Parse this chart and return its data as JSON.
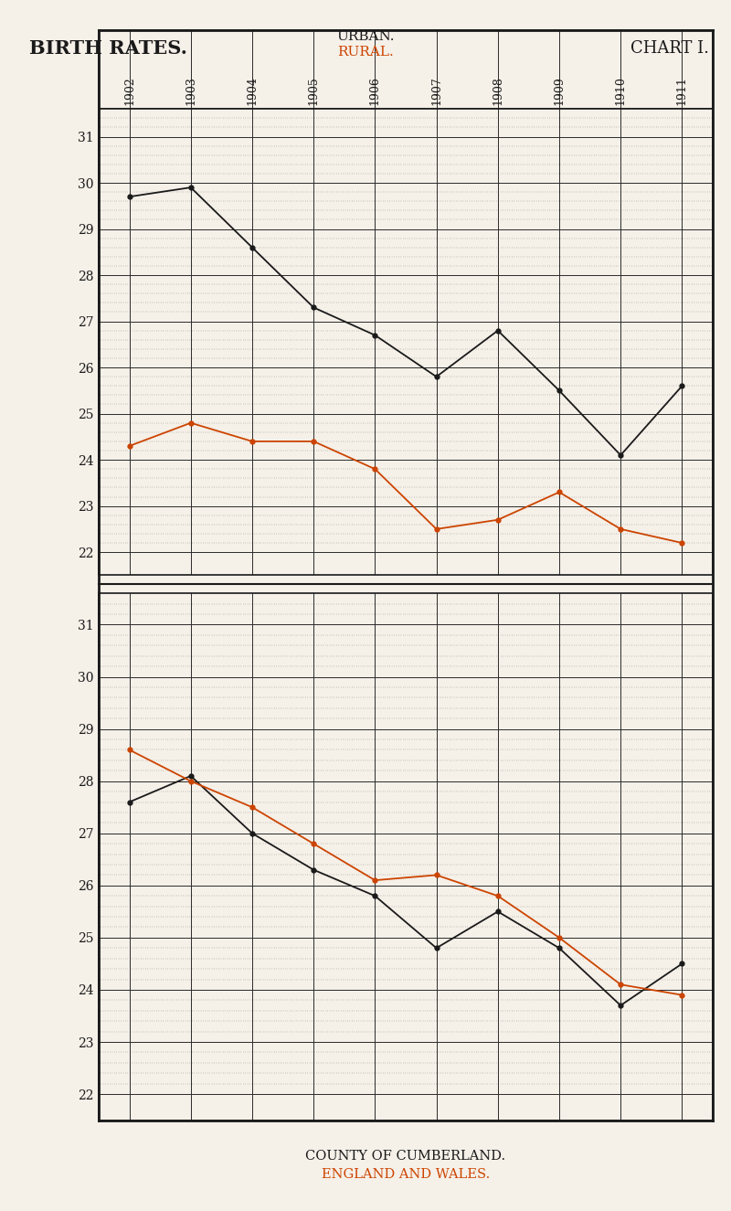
{
  "years": [
    1902,
    1903,
    1904,
    1905,
    1906,
    1907,
    1908,
    1909,
    1910,
    1911
  ],
  "chart1_urban": [
    29.7,
    29.9,
    28.6,
    27.3,
    26.7,
    25.8,
    26.8,
    25.5,
    24.1,
    25.6
  ],
  "chart1_rural": [
    24.3,
    24.8,
    24.4,
    24.4,
    23.8,
    22.5,
    22.7,
    23.3,
    22.5,
    22.2
  ],
  "chart2_urban": [
    27.6,
    28.1,
    27.0,
    26.3,
    25.8,
    24.8,
    25.5,
    24.8,
    23.7,
    24.5
  ],
  "chart2_rural": [
    28.6,
    28.0,
    27.5,
    26.8,
    26.1,
    26.2,
    25.8,
    25.0,
    24.1,
    23.9
  ],
  "bg_color": "#f5f0e8",
  "urban_color": "#1a1a1a",
  "rural_color": "#cc4400",
  "title_left": "BIRTH RATES.",
  "title_center_top": "URBAN.",
  "title_center_bot": "RURAL.",
  "title_right": "CHART I.",
  "footer1": "COUNTY OF CUMBERLAND.",
  "footer2": "ENGLAND AND WALES.",
  "yticks": [
    22,
    23,
    24,
    25,
    26,
    27,
    28,
    29,
    30,
    31
  ],
  "ylim": [
    21.5,
    31.6
  ]
}
